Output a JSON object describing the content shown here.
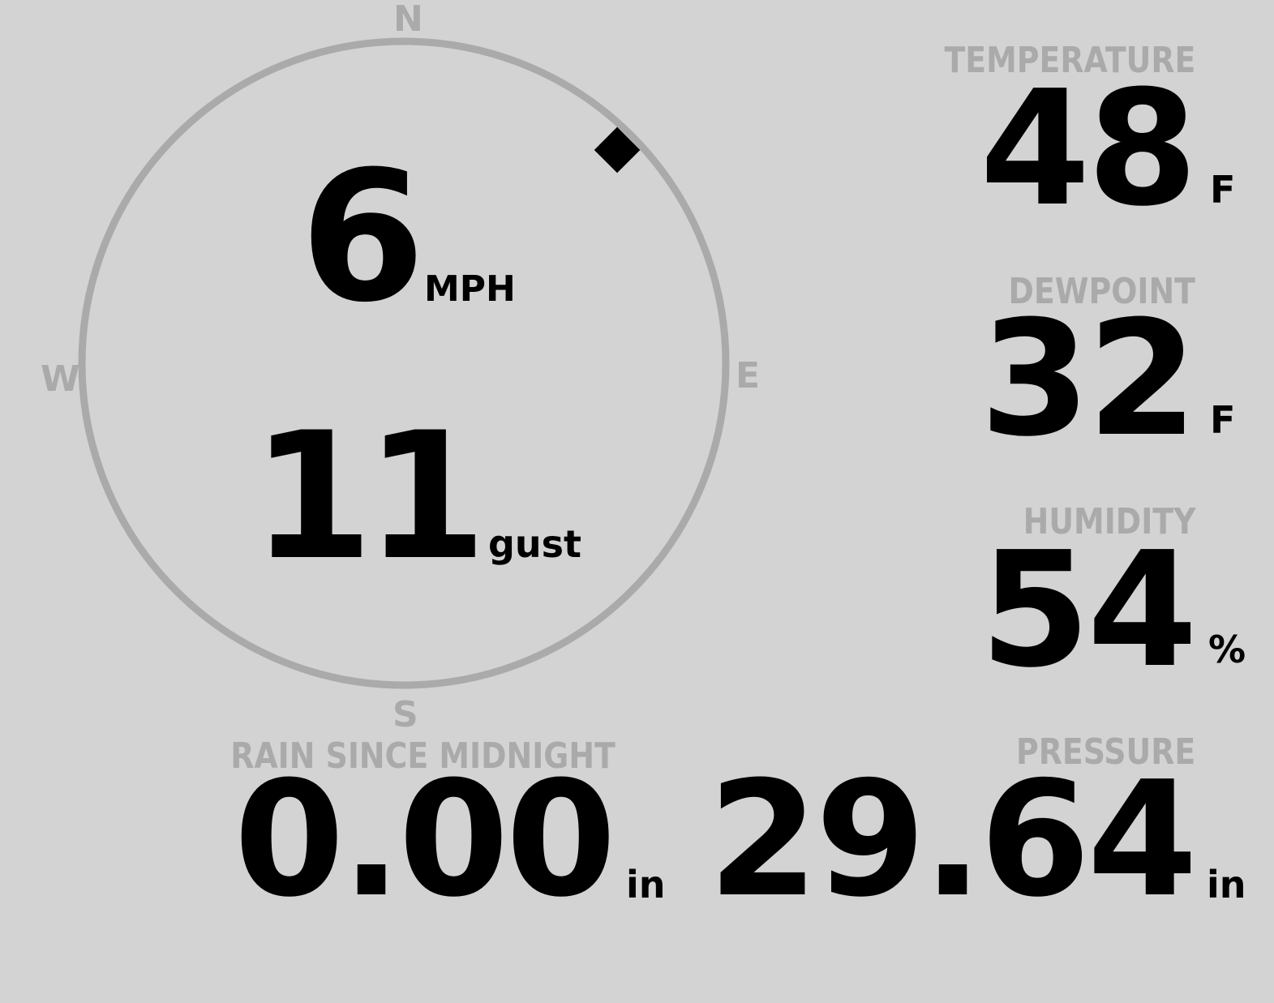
{
  "wind": {
    "compass": {
      "north": "N",
      "east": "E",
      "south": "S",
      "west": "W"
    },
    "direction_degrees": 45,
    "speed": "6",
    "speed_unit": "MPH",
    "gust": "11",
    "gust_unit": "gust"
  },
  "temperature": {
    "label": "TEMPERATURE",
    "value": "48",
    "unit": "F"
  },
  "dewpoint": {
    "label": "DEWPOINT",
    "value": "32",
    "unit": "F"
  },
  "humidity": {
    "label": "HUMIDITY",
    "value": "54",
    "unit": "%"
  },
  "rain": {
    "label": "RAIN SINCE MIDNIGHT",
    "value": "0.00",
    "unit": "in"
  },
  "pressure": {
    "label": "PRESSURE",
    "value": "29.64",
    "unit": "in"
  },
  "colors": {
    "background": "#d3d3d3",
    "muted": "#aaaaaa",
    "value": "#000000"
  }
}
